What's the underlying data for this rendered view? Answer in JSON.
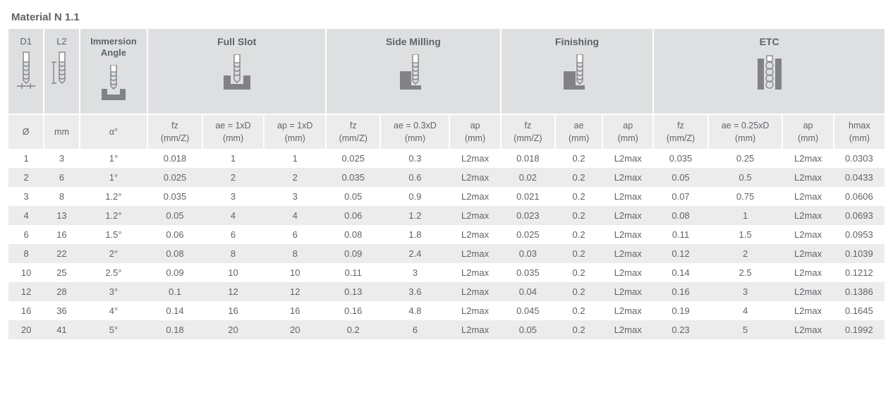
{
  "title": "Material N 1.1",
  "colors": {
    "header_bg": "#dedfe0",
    "subheader_bg": "#ececed",
    "stripe_bg": "#ececed",
    "text": "#5f6368",
    "icon_stroke": "#808285",
    "icon_fill": "#808285"
  },
  "header": {
    "d1": "D1",
    "l2": "L2",
    "immersion": "Immersion Angle",
    "full_slot": "Full Slot",
    "side_milling": "Side Milling",
    "finishing": "Finishing",
    "etc": "ETC"
  },
  "subheader": {
    "c0": {
      "l1": "Ø",
      "l2": ""
    },
    "c1": {
      "l1": "mm",
      "l2": ""
    },
    "c2": {
      "l1": "α°",
      "l2": ""
    },
    "c3": {
      "l1": "fz",
      "l2": "(mm/Z)"
    },
    "c4": {
      "l1": "ae = 1xD",
      "l2": "(mm)"
    },
    "c5": {
      "l1": "ap = 1xD",
      "l2": "(mm)"
    },
    "c6": {
      "l1": "fz",
      "l2": "(mm/Z)"
    },
    "c7": {
      "l1": "ae = 0.3xD",
      "l2": "(mm)"
    },
    "c8": {
      "l1": "ap",
      "l2": "(mm)"
    },
    "c9": {
      "l1": "fz",
      "l2": "(mm/Z)"
    },
    "c10": {
      "l1": "ae",
      "l2": "(mm)"
    },
    "c11": {
      "l1": "ap",
      "l2": "(mm)"
    },
    "c12": {
      "l1": "fz",
      "l2": "(mm/Z)"
    },
    "c13": {
      "l1": "ae = 0.25xD",
      "l2": "(mm)"
    },
    "c14": {
      "l1": "ap",
      "l2": "(mm)"
    },
    "c15": {
      "l1": "hmax",
      "l2": "(mm)"
    }
  },
  "column_widths_pct": [
    3.9,
    3.9,
    7.5,
    6.0,
    6.8,
    6.8,
    6.0,
    7.6,
    5.6,
    6.0,
    5.2,
    5.6,
    6.0,
    8.2,
    5.6,
    5.6
  ],
  "rows": [
    [
      "1",
      "3",
      "1°",
      "0.018",
      "1",
      "1",
      "0.025",
      "0.3",
      "L2max",
      "0.018",
      "0.2",
      "L2max",
      "0.035",
      "0.25",
      "L2max",
      "0.0303"
    ],
    [
      "2",
      "6",
      "1°",
      "0.025",
      "2",
      "2",
      "0.035",
      "0.6",
      "L2max",
      "0.02",
      "0.2",
      "L2max",
      "0.05",
      "0.5",
      "L2max",
      "0.0433"
    ],
    [
      "3",
      "8",
      "1.2°",
      "0.035",
      "3",
      "3",
      "0.05",
      "0.9",
      "L2max",
      "0.021",
      "0.2",
      "L2max",
      "0.07",
      "0.75",
      "L2max",
      "0.0606"
    ],
    [
      "4",
      "13",
      "1.2°",
      "0.05",
      "4",
      "4",
      "0.06",
      "1.2",
      "L2max",
      "0.023",
      "0.2",
      "L2max",
      "0.08",
      "1",
      "L2max",
      "0.0693"
    ],
    [
      "6",
      "16",
      "1.5°",
      "0.06",
      "6",
      "6",
      "0.08",
      "1.8",
      "L2max",
      "0.025",
      "0.2",
      "L2max",
      "0.11",
      "1.5",
      "L2max",
      "0.0953"
    ],
    [
      "8",
      "22",
      "2°",
      "0.08",
      "8",
      "8",
      "0.09",
      "2.4",
      "L2max",
      "0.03",
      "0.2",
      "L2max",
      "0.12",
      "2",
      "L2max",
      "0.1039"
    ],
    [
      "10",
      "25",
      "2.5°",
      "0.09",
      "10",
      "10",
      "0.11",
      "3",
      "L2max",
      "0.035",
      "0.2",
      "L2max",
      "0.14",
      "2.5",
      "L2max",
      "0.1212"
    ],
    [
      "12",
      "28",
      "3°",
      "0.1",
      "12",
      "12",
      "0.13",
      "3.6",
      "L2max",
      "0.04",
      "0.2",
      "L2max",
      "0.16",
      "3",
      "L2max",
      "0.1386"
    ],
    [
      "16",
      "36",
      "4°",
      "0.14",
      "16",
      "16",
      "0.16",
      "4.8",
      "L2max",
      "0.045",
      "0.2",
      "L2max",
      "0.19",
      "4",
      "L2max",
      "0.1645"
    ],
    [
      "20",
      "41",
      "5°",
      "0.18",
      "20",
      "20",
      "0.2",
      "6",
      "L2max",
      "0.05",
      "0.2",
      "L2max",
      "0.23",
      "5",
      "L2max",
      "0.1992"
    ]
  ]
}
